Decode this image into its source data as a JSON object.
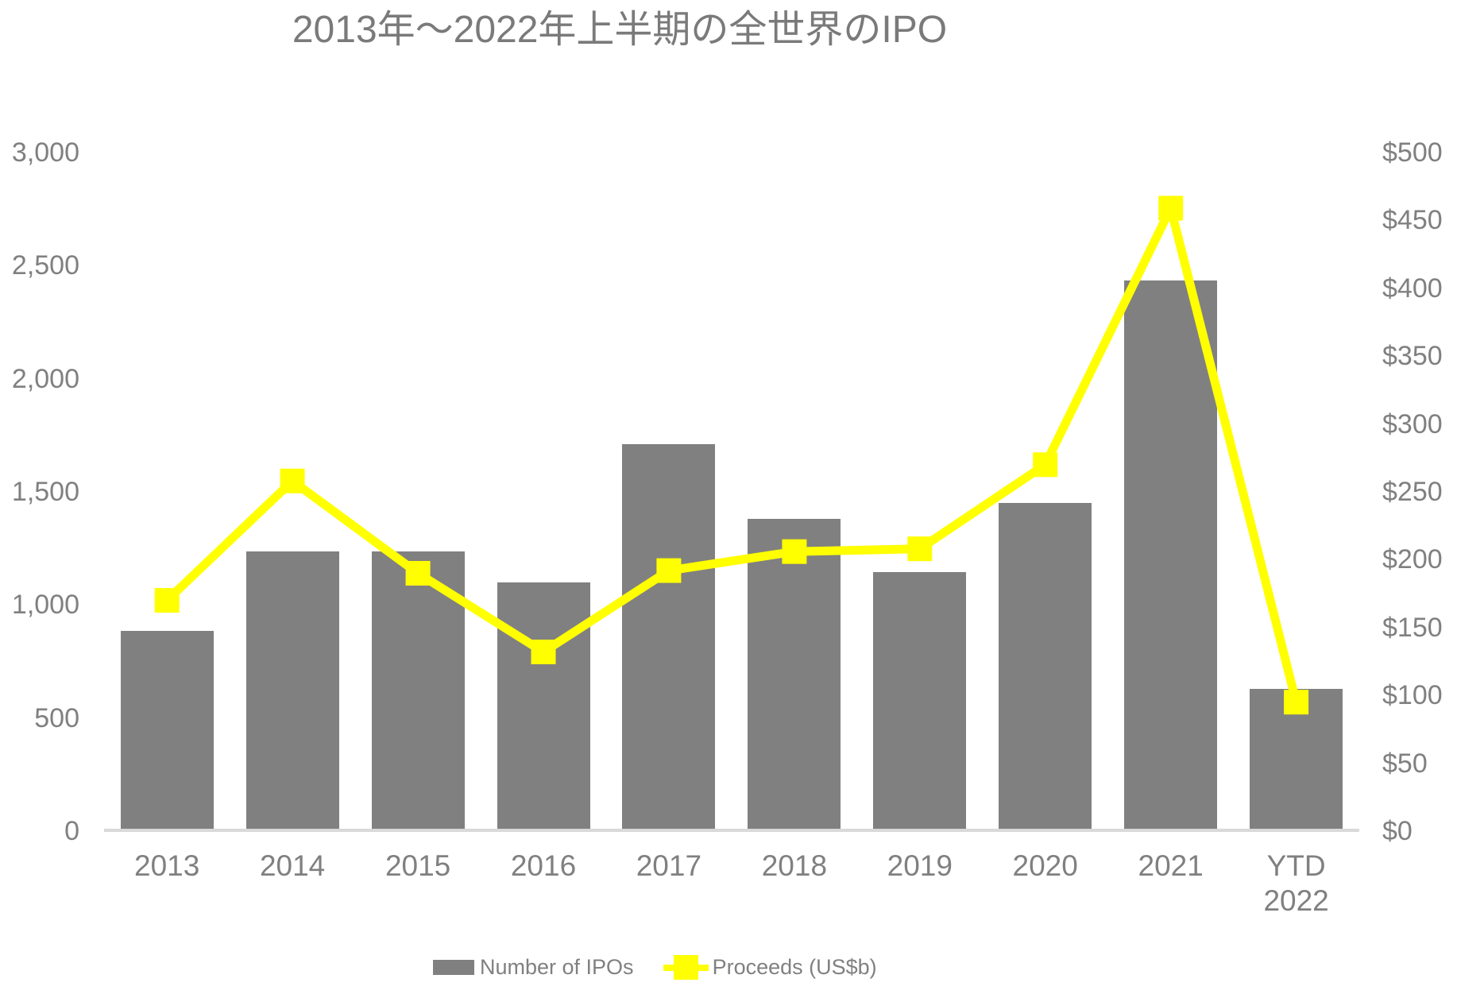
{
  "title": {
    "text": "2013年～2022年上半期の全世界のIPO"
  },
  "legend": {
    "items": [
      {
        "label": "Number of IPOs",
        "swatch": "gray-bar-swatch"
      },
      {
        "label": "Proceeds (US$b)",
        "swatch": "yellow-line-marker-swatch"
      }
    ]
  },
  "colors": {
    "background": "#FFFFFF",
    "bar": "#808080",
    "line": "#FFFF00",
    "text": "#808080",
    "title_text": "#7A7A7A",
    "axis_line": "#D9D9D9"
  },
  "chart_data": {
    "type": "bar",
    "subtype": "combo-bar-line-dual-axis",
    "title": "2013年～2022年上半期の全世界のIPO",
    "categories": [
      "2013",
      "2014",
      "2015",
      "2016",
      "2017",
      "2018",
      "2019",
      "2020",
      "2021",
      "YTD\n2022"
    ],
    "series": [
      {
        "name": "Number of IPOs",
        "type": "bar",
        "axis": "left",
        "color": "#808080",
        "values": [
          885,
          1235,
          1235,
          1100,
          1710,
          1380,
          1145,
          1450,
          2435,
          630
        ]
      },
      {
        "name": "Proceeds (US$b)",
        "type": "line",
        "axis": "right",
        "color": "#FFFF00",
        "marker": "square",
        "values": [
          170,
          258,
          190,
          132,
          192,
          206,
          208,
          270,
          459,
          95
        ]
      }
    ],
    "left_axis": {
      "min": 0,
      "max": 3000,
      "step": 500,
      "tick_labels": [
        "0",
        "500",
        "1,000",
        "1,500",
        "2,000",
        "2,500",
        "3,000"
      ]
    },
    "right_axis": {
      "min": 0,
      "max": 500,
      "step": 50,
      "tick_labels": [
        "$0",
        "$50",
        "$100",
        "$150",
        "$200",
        "$250",
        "$300",
        "$350",
        "$400",
        "$450",
        "$500"
      ]
    },
    "grid": false,
    "legend_position": "bottom"
  }
}
